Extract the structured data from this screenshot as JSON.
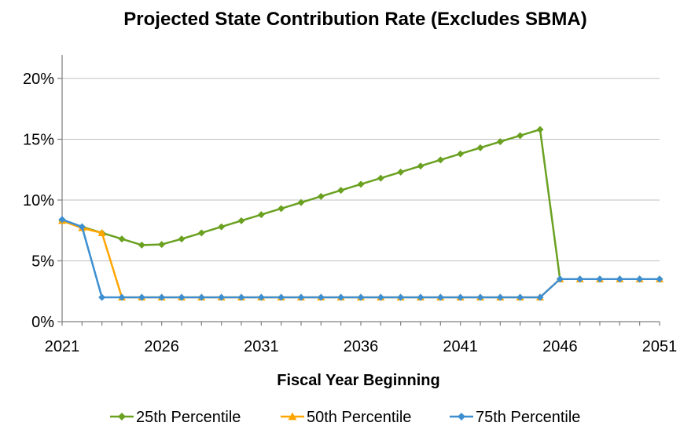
{
  "chart_data": {
    "type": "line",
    "title": "Projected State Contribution Rate (Excludes SBMA)",
    "xlabel": "Fiscal Year Beginning",
    "ylabel": "",
    "x": [
      2021,
      2022,
      2023,
      2024,
      2025,
      2026,
      2027,
      2028,
      2029,
      2030,
      2031,
      2032,
      2033,
      2034,
      2035,
      2036,
      2037,
      2038,
      2039,
      2040,
      2041,
      2042,
      2043,
      2044,
      2045,
      2046,
      2047,
      2048,
      2049,
      2050,
      2051
    ],
    "xlim": [
      2021,
      2051
    ],
    "ylim": [
      0,
      0.2
    ],
    "x_ticks": [
      2021,
      2026,
      2031,
      2036,
      2041,
      2046,
      2051
    ],
    "y_ticks": [
      0,
      0.05,
      0.1,
      0.15,
      0.2
    ],
    "y_tick_labels": [
      "0%",
      "5%",
      "10%",
      "15%",
      "20%"
    ],
    "grid": "horizontal",
    "legend": "bottom",
    "series": [
      {
        "name": "25th Percentile",
        "color": "#6aa121",
        "marker": "diamond",
        "values": [
          0.083,
          0.078,
          0.073,
          0.068,
          0.063,
          0.0635,
          0.068,
          0.073,
          0.078,
          0.083,
          0.088,
          0.093,
          0.098,
          0.103,
          0.108,
          0.113,
          0.118,
          0.123,
          0.128,
          0.133,
          0.138,
          0.143,
          0.148,
          0.153,
          0.158,
          0.035,
          0.035,
          0.035,
          0.035,
          0.035,
          0.035
        ]
      },
      {
        "name": "50th Percentile",
        "color": "#ffa500",
        "marker": "triangle",
        "values": [
          0.083,
          0.077,
          0.073,
          0.02,
          0.02,
          0.02,
          0.02,
          0.02,
          0.02,
          0.02,
          0.02,
          0.02,
          0.02,
          0.02,
          0.02,
          0.02,
          0.02,
          0.02,
          0.02,
          0.02,
          0.02,
          0.02,
          0.02,
          0.02,
          0.02,
          0.035,
          0.035,
          0.035,
          0.035,
          0.035,
          0.035
        ]
      },
      {
        "name": "75th Percentile",
        "color": "#3d8fd1",
        "marker": "diamond",
        "values": [
          0.084,
          0.078,
          0.02,
          0.02,
          0.02,
          0.02,
          0.02,
          0.02,
          0.02,
          0.02,
          0.02,
          0.02,
          0.02,
          0.02,
          0.02,
          0.02,
          0.02,
          0.02,
          0.02,
          0.02,
          0.02,
          0.02,
          0.02,
          0.02,
          0.02,
          0.035,
          0.035,
          0.035,
          0.035,
          0.035,
          0.035
        ]
      }
    ]
  }
}
